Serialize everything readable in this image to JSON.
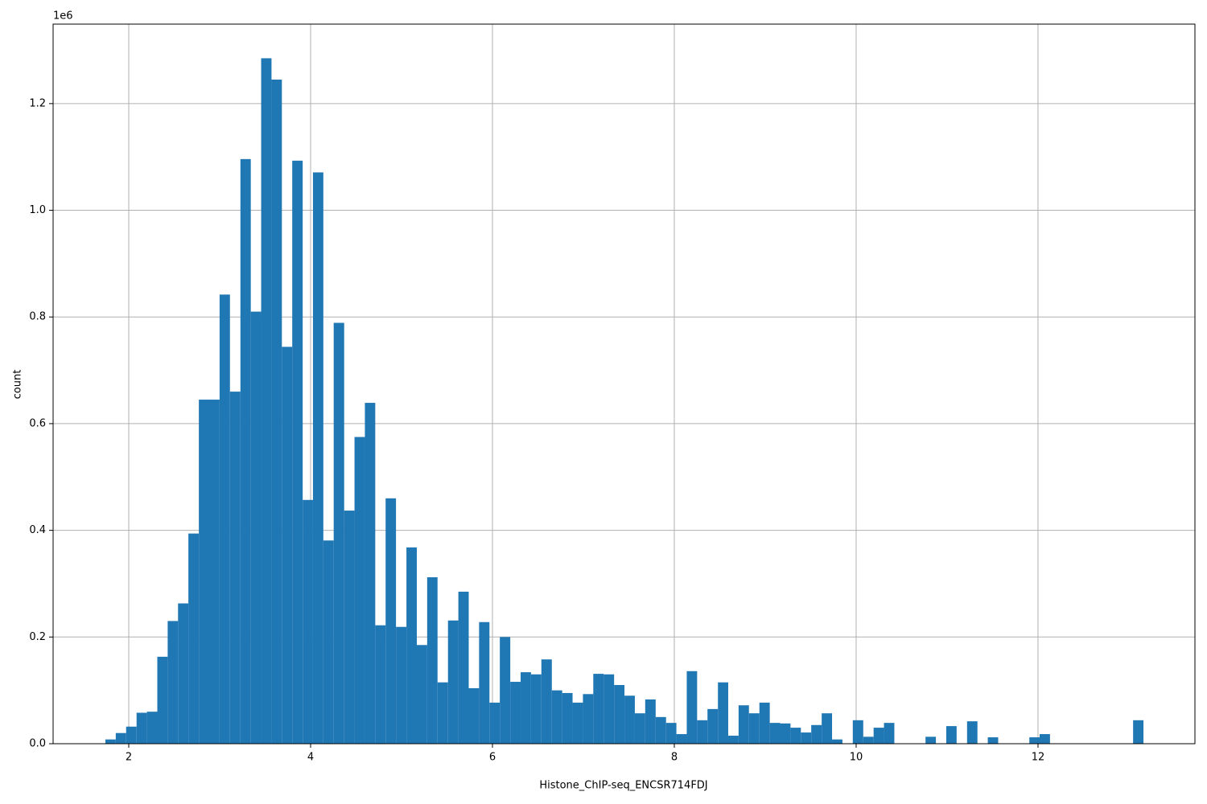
{
  "chart_data": {
    "type": "histogram",
    "xlabel": "Histone_ChIP-seq_ENCSR714FDJ",
    "ylabel": "count",
    "y_offset_label": "1e6",
    "color": "#1f77b4",
    "grid": true,
    "bins": [
      1.743,
      1.857,
      1.971,
      2.086,
      2.2,
      2.314,
      2.428,
      2.542,
      2.656,
      2.771,
      2.885,
      2.999,
      3.113,
      3.228,
      3.342,
      3.456,
      3.57,
      3.684,
      3.798,
      3.913,
      4.026,
      4.14,
      4.254,
      4.369,
      4.483,
      4.597,
      4.711,
      4.825,
      4.939,
      5.054,
      5.168,
      5.282,
      5.396,
      5.511,
      5.625,
      5.739,
      5.853,
      5.967,
      6.081,
      6.196,
      6.31,
      6.424,
      6.538,
      6.653,
      6.767,
      6.881,
      6.995,
      7.109,
      7.223,
      7.338,
      7.452,
      7.566,
      7.68,
      7.795,
      7.909,
      8.023,
      8.137,
      8.251,
      8.365,
      8.48,
      8.593,
      8.707,
      8.821,
      8.936,
      9.05,
      9.164,
      9.278,
      9.392,
      9.506,
      9.621,
      9.735,
      9.849,
      9.963,
      10.078,
      10.192,
      10.306,
      10.42,
      10.534,
      10.648,
      10.763,
      10.877,
      10.991,
      11.105,
      11.22,
      11.334,
      11.448,
      11.562,
      11.676,
      11.79,
      11.905,
      12.018,
      12.132,
      12.246,
      12.361,
      12.475,
      12.589,
      12.703,
      12.817,
      12.931,
      13.046,
      13.16
    ],
    "values": [
      8000,
      20000,
      32000,
      58000,
      60000,
      163000,
      230000,
      263000,
      394000,
      645000,
      645000,
      842000,
      660000,
      1096000,
      810000,
      1285000,
      1245000,
      744000,
      1093000,
      457000,
      1071000,
      381000,
      789000,
      437000,
      575000,
      639000,
      222000,
      460000,
      219000,
      368000,
      185000,
      312000,
      115000,
      231000,
      285000,
      104000,
      228000,
      77000,
      200000,
      116000,
      134000,
      130000,
      158000,
      100000,
      95000,
      77000,
      93000,
      131000,
      130000,
      110000,
      90000,
      57000,
      83000,
      50000,
      39000,
      18000,
      136000,
      44000,
      65000,
      115000,
      15000,
      72000,
      57000,
      77000,
      39000,
      38000,
      30000,
      21000,
      35000,
      57000,
      8000,
      0,
      44000,
      13000,
      30000,
      39000,
      0,
      0,
      0,
      13000,
      0,
      33000,
      0,
      42000,
      0,
      12000,
      0,
      0,
      0,
      12000,
      18000,
      0,
      0,
      0,
      0,
      0,
      0,
      0,
      0,
      44000
    ],
    "xlim": [
      1.168,
      13.726
    ],
    "ylim": [
      0,
      1349000
    ],
    "xticks": [
      2,
      4,
      6,
      8,
      10,
      12
    ],
    "yticks": [
      {
        "value": 0,
        "label": "0.0"
      },
      {
        "value": 200000,
        "label": "0.2"
      },
      {
        "value": 400000,
        "label": "0.4"
      },
      {
        "value": 600000,
        "label": "0.6"
      },
      {
        "value": 800000,
        "label": "0.8"
      },
      {
        "value": 1000000,
        "label": "1.0"
      },
      {
        "value": 1200000,
        "label": "1.2"
      }
    ]
  }
}
